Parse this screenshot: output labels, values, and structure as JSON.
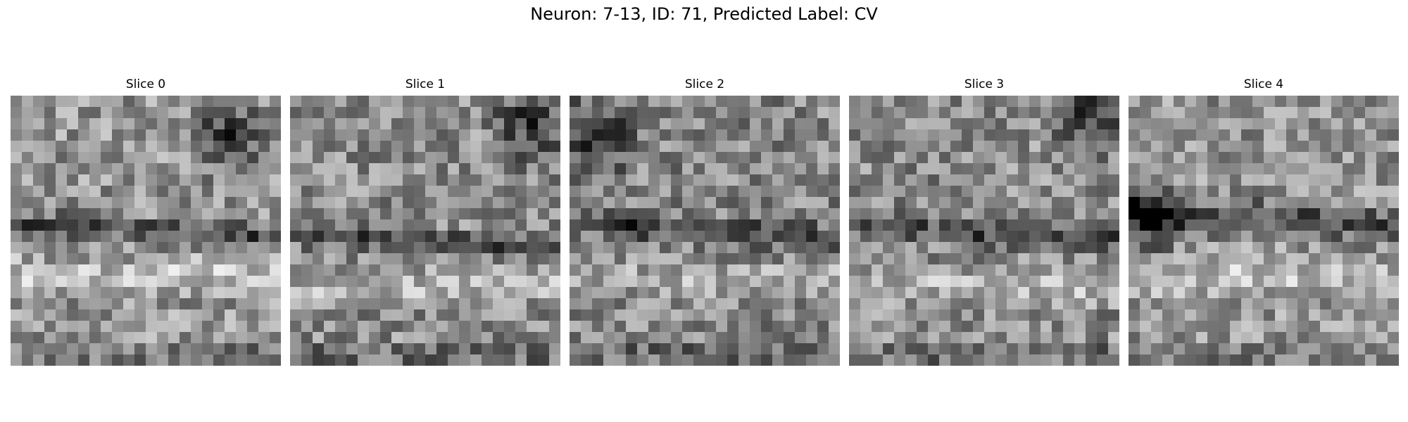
{
  "figure": {
    "title": "Neuron: 7-13, ID: 71, Predicted Label: CV",
    "colormap": "gray"
  },
  "slices": [
    {
      "label": "Slice 0"
    },
    {
      "label": "Slice 1"
    },
    {
      "label": "Slice 2"
    },
    {
      "label": "Slice 3"
    },
    {
      "label": "Slice 4"
    }
  ]
}
